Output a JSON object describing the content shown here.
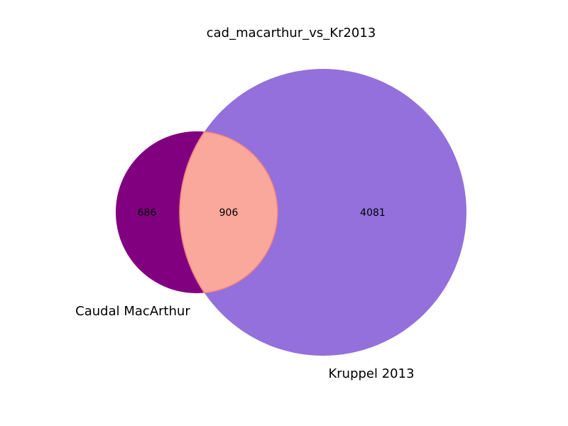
{
  "chart_data": {
    "type": "venn",
    "title": "cad_macarthur_vs_Kr2013",
    "sets": [
      {
        "name": "Caudal MacArthur",
        "only_count": 686,
        "color": "#800080"
      },
      {
        "name": "Kruppel 2013",
        "only_count": 4081,
        "color": "#9370DB"
      }
    ],
    "intersection": {
      "count": 906,
      "color": "#FAA79C",
      "edge_color": "#F08080"
    },
    "labels": {
      "a_only": "686",
      "intersection": "906",
      "b_only": "4081"
    }
  }
}
